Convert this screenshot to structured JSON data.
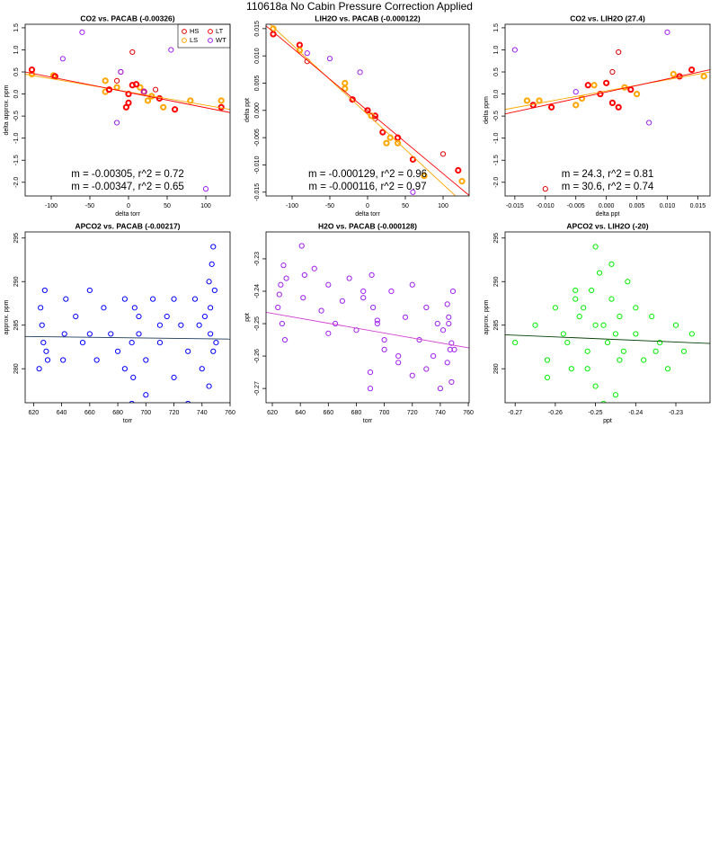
{
  "title": "110618a   No Cabin Pressure Correction Applied",
  "chart_data": [
    {
      "type": "scatter",
      "title": "CO2 vs. PACAB (-0.00326)",
      "x_label": "delta torr",
      "y_label": "delta approx. ppm",
      "xlim": [
        -133.7,
        131.4
      ],
      "ylim": [
        -2.31,
        1.58
      ],
      "xticks": [
        -100,
        -50,
        0,
        50,
        100
      ],
      "yticks": [
        1.5,
        {
          "value": 1,
          "label": "1.0"
        },
        0.5,
        {
          "value": 0,
          "label": "0.0"
        },
        -0.5,
        {
          "value": -1,
          "label": "-1.0"
        },
        -1.5,
        {
          "value": -2,
          "label": "-2.0"
        }
      ],
      "legend": "top-right",
      "series": [
        {
          "name": "HS",
          "color": "#e00000",
          "stroke_width": 1,
          "x": [
            5,
            -10,
            -15,
            35
          ],
          "values": [
            0.95,
            0.5,
            0.3,
            0.1
          ]
        },
        {
          "name": "LS",
          "color": "#ffa500",
          "stroke_width": 2,
          "x": [
            -125,
            -97,
            -30,
            -15,
            -30,
            25,
            30,
            45,
            80,
            120,
            15
          ],
          "values": [
            0.45,
            0.42,
            0.3,
            0.15,
            0.05,
            -0.15,
            -0.05,
            -0.3,
            -0.15,
            -0.15,
            0.15
          ]
        },
        {
          "name": "LT",
          "color": "#ff0000",
          "stroke_width": 2,
          "x": [
            -125,
            -95,
            -25,
            0,
            5,
            10,
            20,
            60,
            120,
            40,
            0,
            -3
          ],
          "values": [
            0.55,
            0.4,
            0.1,
            0.0,
            0.2,
            0.22,
            0.05,
            -0.35,
            -0.3,
            -0.1,
            -0.2,
            -0.3
          ]
        },
        {
          "name": "WT",
          "color": "#a020f0",
          "stroke_width": 1,
          "x": [
            -60,
            -85,
            -10,
            55,
            -15,
            100,
            20
          ],
          "values": [
            1.4,
            0.8,
            0.5,
            1.0,
            -0.65,
            -2.15,
            0.05
          ]
        }
      ],
      "fits": [
        {
          "color": "#ffa500",
          "x": [
            -133.7,
            131.4
          ],
          "values": [
            0.45,
            -0.35
          ]
        },
        {
          "color": "#ff0000",
          "x": [
            -133.7,
            131.4
          ],
          "values": [
            0.5,
            -0.42
          ]
        }
      ],
      "annotations": [
        {
          "text": "m = -0.00305, r^2 = 0.72",
          "color": "#ffa500"
        },
        {
          "text": "m = -0.00347, r^2 = 0.65",
          "color": "#ff0000"
        }
      ]
    },
    {
      "type": "scatter",
      "title": "LIH2O vs. PACAB (-0.000122)",
      "x_label": "delta torr",
      "y_label": "delta ppt",
      "xlim": [
        -134.5,
        134.5
      ],
      "ylim": [
        -0.0157,
        0.0158
      ],
      "xticks": [
        -100,
        -50,
        0,
        50,
        100
      ],
      "yticks": [
        0.015,
        {
          "value": 0.01,
          "label": "0.010"
        },
        0.005,
        {
          "value": 0,
          "label": "0.000"
        },
        -0.005,
        {
          "value": -0.01,
          "label": "-0.010"
        },
        -0.015
      ],
      "series": [
        {
          "color": "#ff0000",
          "stroke_width": 2,
          "x": [
            -125,
            -90,
            -20,
            0,
            10,
            20,
            40,
            60,
            120
          ],
          "values": [
            0.014,
            0.012,
            0.002,
            0.0,
            -0.001,
            -0.004,
            -0.005,
            -0.009,
            -0.011
          ]
        },
        {
          "color": "#ffa500",
          "stroke_width": 2,
          "x": [
            -125,
            -90,
            -30,
            -30,
            5,
            25,
            30,
            40,
            75,
            125
          ],
          "values": [
            0.015,
            0.011,
            0.005,
            0.004,
            -0.001,
            -0.006,
            -0.005,
            -0.006,
            -0.012,
            -0.013
          ]
        },
        {
          "color": "#e00000",
          "stroke_width": 1,
          "x": [
            -80,
            10,
            100
          ],
          "values": [
            0.009,
            -0.0015,
            -0.008
          ]
        },
        {
          "color": "#a020f0",
          "stroke_width": 1,
          "x": [
            -50,
            -10,
            60,
            -80
          ],
          "values": [
            0.0095,
            0.007,
            -0.015,
            0.0105
          ]
        }
      ],
      "fits": [
        {
          "color": "#ffa500",
          "x": [
            -134.5,
            134.5
          ],
          "values": [
            0.0165,
            -0.018
          ]
        },
        {
          "color": "#ff0000",
          "x": [
            -134.5,
            134.5
          ],
          "values": [
            0.0155,
            -0.0156
          ]
        }
      ],
      "annotations": [
        {
          "text": "m = -0.000129, r^2 = 0.96",
          "color": "#ffa500"
        },
        {
          "text": "m = -0.000116, r^2 = 0.97",
          "color": "#ff0000"
        }
      ]
    },
    {
      "type": "scatter",
      "title": "CO2 vs. LIH2O (27.4)",
      "x_label": "delta ppt",
      "y_label": "delta ppm",
      "xlim": [
        -0.0166,
        0.017
      ],
      "ylim": [
        -2.31,
        1.58
      ],
      "xticks": [
        -0.015,
        {
          "value": -0.01,
          "label": "-0.010"
        },
        -0.005,
        {
          "value": 0,
          "label": "0.000"
        },
        0.005,
        {
          "value": 0.01,
          "label": "0.010"
        },
        0.015
      ],
      "yticks": [
        1.5,
        {
          "value": 1,
          "label": "1.0"
        },
        0.5,
        {
          "value": 0,
          "label": "0.0"
        },
        -0.5,
        {
          "value": -1,
          "label": "-1.0"
        },
        -1.5,
        {
          "value": -2,
          "label": "-2.0"
        }
      ],
      "series": [
        {
          "color": "#ff0000",
          "stroke_width": 2,
          "x": [
            -0.012,
            -0.009,
            -0.003,
            0,
            0.001,
            0.002,
            0.004,
            0.012,
            0.014,
            -0.001
          ],
          "values": [
            -0.25,
            -0.3,
            0.2,
            0.25,
            -0.2,
            -0.3,
            0.1,
            0.4,
            0.55,
            0.0
          ]
        },
        {
          "color": "#ffa500",
          "stroke_width": 2,
          "x": [
            -0.013,
            -0.011,
            -0.005,
            -0.002,
            0.003,
            0.005,
            0.011,
            0.016,
            -0.004
          ],
          "values": [
            -0.15,
            -0.15,
            -0.25,
            0.2,
            0.15,
            0.0,
            0.45,
            0.4,
            -0.1
          ]
        },
        {
          "color": "#e00000",
          "stroke_width": 1,
          "x": [
            -0.01,
            0.001,
            0.002
          ],
          "values": [
            -2.15,
            0.5,
            0.95
          ]
        },
        {
          "color": "#a020f0",
          "stroke_width": 1,
          "x": [
            -0.015,
            0.01,
            0.007,
            -0.005
          ],
          "values": [
            1.0,
            1.4,
            -0.65,
            0.05
          ]
        }
      ],
      "fits": [
        {
          "color": "#ffa500",
          "x": [
            -0.0166,
            0.017
          ],
          "values": [
            -0.35,
            0.5
          ]
        },
        {
          "color": "#ff0000",
          "x": [
            -0.0166,
            0.017
          ],
          "values": [
            -0.45,
            0.55
          ]
        }
      ],
      "annotations": [
        {
          "text": "m = 24.3, r^2 = 0.81",
          "color": "#ffa500"
        },
        {
          "text": "m = 30.6, r^2 = 0.74",
          "color": "#ff0000"
        }
      ]
    },
    {
      "type": "scatter",
      "title": "APCO2 vs. PACAB (-0.00217)",
      "x_label": "torr",
      "y_label": "approx. ppm",
      "xlim": [
        614,
        760
      ],
      "ylim": [
        276.1,
        295.7
      ],
      "xticks": [
        620,
        640,
        660,
        680,
        700,
        720,
        740,
        760
      ],
      "yticks": [
        280,
        285,
        290,
        295
      ],
      "series": [
        {
          "color": "#0000ff",
          "stroke_width": 1,
          "x": [
            624,
            626,
            628,
            627,
            625,
            629,
            641,
            643,
            642,
            650,
            655,
            660,
            665,
            670,
            675,
            680,
            685,
            690,
            691,
            692,
            695,
            700,
            705,
            710,
            715,
            720,
            725,
            730,
            735,
            740,
            742,
            745,
            746,
            747,
            748,
            749,
            748,
            746,
            700,
            710,
            720,
            730,
            690,
            695,
            685,
            660,
            630,
            745,
            750,
            738
          ],
          "values": [
            280,
            285,
            289,
            283,
            287,
            282,
            281,
            288,
            284,
            286,
            283,
            289,
            281,
            287,
            284,
            282,
            288,
            276,
            279,
            287,
            284,
            281,
            288,
            283,
            286,
            279,
            285,
            282,
            288,
            280,
            286,
            278,
            284,
            292,
            294,
            289,
            282,
            287,
            277,
            285,
            288,
            276,
            283,
            286,
            280,
            284,
            281,
            290,
            283,
            285
          ]
        }
      ],
      "fits": [
        {
          "color": "#1a3a5a",
          "x": [
            614,
            760
          ],
          "values": [
            283.7,
            283.4
          ]
        }
      ]
    },
    {
      "type": "scatter",
      "title": "H2O vs. PACAB (-0.000128)",
      "x_label": "torr",
      "y_label": "ppt",
      "xlim": [
        615.5,
        760.6
      ],
      "ylim": [
        -0.2744,
        -0.2217
      ],
      "xticks": [
        620,
        640,
        660,
        680,
        700,
        720,
        740,
        760
      ],
      "yticks": [
        -0.23,
        -0.24,
        -0.25,
        -0.26,
        -0.27
      ],
      "series": [
        {
          "color": "#a020f0",
          "stroke_width": 1,
          "x": [
            624,
            626,
            628,
            627,
            625,
            629,
            641,
            643,
            642,
            650,
            655,
            660,
            665,
            670,
            675,
            680,
            685,
            690,
            691,
            692,
            695,
            700,
            705,
            710,
            715,
            720,
            725,
            730,
            735,
            740,
            742,
            745,
            746,
            747,
            748,
            749,
            748,
            746,
            700,
            710,
            720,
            730,
            690,
            695,
            685,
            660,
            630,
            745,
            750,
            738
          ],
          "values": [
            -0.245,
            -0.238,
            -0.232,
            -0.25,
            -0.241,
            -0.255,
            -0.226,
            -0.235,
            -0.242,
            -0.233,
            -0.246,
            -0.238,
            -0.25,
            -0.243,
            -0.236,
            -0.252,
            -0.24,
            -0.265,
            -0.235,
            -0.245,
            -0.25,
            -0.258,
            -0.24,
            -0.262,
            -0.248,
            -0.266,
            -0.255,
            -0.245,
            -0.26,
            -0.27,
            -0.252,
            -0.262,
            -0.248,
            -0.258,
            -0.268,
            -0.24,
            -0.256,
            -0.25,
            -0.255,
            -0.26,
            -0.238,
            -0.264,
            -0.27,
            -0.249,
            -0.242,
            -0.253,
            -0.236,
            -0.244,
            -0.258,
            -0.25
          ]
        }
      ],
      "fits": [
        {
          "color": "#d040d0",
          "x": [
            615.5,
            760.6
          ],
          "values": [
            -0.2465,
            -0.2575
          ]
        }
      ]
    },
    {
      "type": "scatter",
      "title": "APCO2 vs. LIH2O (-20)",
      "x_label": "ppt",
      "y_label": "approx. ppm",
      "xlim": [
        -0.2725,
        -0.2215
      ],
      "ylim": [
        276.1,
        295.7
      ],
      "xticks": [
        -0.27,
        -0.26,
        -0.25,
        -0.24,
        -0.23
      ],
      "yticks": [
        280,
        285,
        290,
        295
      ],
      "series": [
        {
          "color": "#00ee00",
          "stroke_width": 1,
          "x": [
            -0.27,
            -0.265,
            -0.262,
            -0.26,
            -0.258,
            -0.256,
            -0.255,
            -0.254,
            -0.252,
            -0.25,
            -0.25,
            -0.249,
            -0.248,
            -0.247,
            -0.246,
            -0.245,
            -0.244,
            -0.243,
            -0.242,
            -0.24,
            -0.238,
            -0.236,
            -0.234,
            -0.232,
            -0.23,
            -0.228,
            -0.226,
            -0.253,
            -0.251,
            -0.248,
            -0.246,
            -0.244,
            -0.257,
            -0.262,
            -0.24,
            -0.235,
            -0.25,
            -0.255,
            -0.245,
            -0.252
          ],
          "values": [
            283,
            285,
            281,
            287,
            284,
            280,
            289,
            286,
            282,
            294,
            278,
            291,
            285,
            283,
            288,
            277,
            286,
            282,
            290,
            284,
            281,
            286,
            283,
            280,
            285,
            282,
            284,
            287,
            289,
            276,
            292,
            281,
            283,
            279,
            287,
            282,
            285,
            288,
            284,
            280
          ]
        }
      ],
      "fits": [
        {
          "color": "#004000",
          "x": [
            -0.2725,
            -0.2215
          ],
          "values": [
            283.9,
            282.9
          ]
        }
      ]
    }
  ]
}
